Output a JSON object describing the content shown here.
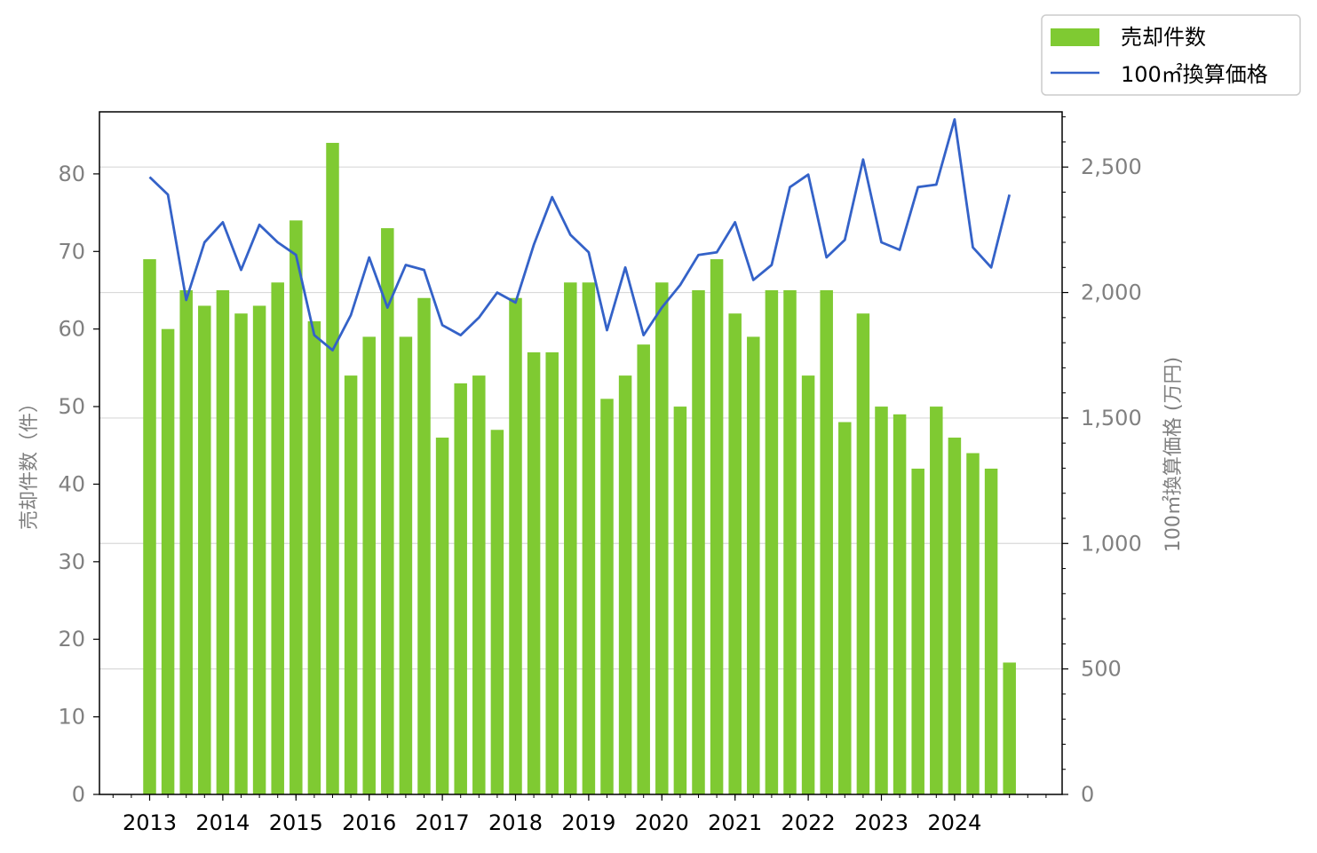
{
  "chart_data": {
    "type": "bar+line",
    "title": "",
    "x_labels": [
      "2013",
      "2014",
      "2015",
      "2016",
      "2017",
      "2018",
      "2019",
      "2020",
      "2021",
      "2022",
      "2023",
      "2024"
    ],
    "x_start_year": 2013,
    "periods_per_year": 4,
    "y_left_label": "売却件数（件）",
    "y_right_label": "100㎡換算価格 (万円)",
    "y_left_ticks": [
      "0",
      "10",
      "20",
      "30",
      "40",
      "50",
      "60",
      "70",
      "80"
    ],
    "y_right_ticks": [
      "0",
      "500",
      "1,000",
      "1,500",
      "2,000",
      "2,500"
    ],
    "y_left_lim": [
      0,
      88
    ],
    "y_right_lim": [
      0,
      2720
    ],
    "grid": true,
    "legend_position": "top-right",
    "legend": [
      "売却件数",
      "100㎡換算価格"
    ],
    "colors": {
      "bar": "#7fca32",
      "line": "#3462c8",
      "grid": "#d9d9d9",
      "tick_text": "#808080"
    },
    "series": [
      {
        "name": "売却件数",
        "type": "bar",
        "axis": "left",
        "values": [
          69,
          60,
          65,
          63,
          65,
          62,
          63,
          66,
          74,
          61,
          84,
          54,
          59,
          73,
          59,
          64,
          46,
          53,
          54,
          47,
          64,
          57,
          57,
          66,
          66,
          51,
          54,
          58,
          66,
          50,
          65,
          69,
          62,
          59,
          65,
          65,
          54,
          65,
          48,
          62,
          50,
          49,
          42,
          50,
          46,
          44,
          42,
          17
        ]
      },
      {
        "name": "100㎡換算価格",
        "type": "line",
        "axis": "right",
        "values": [
          2460,
          2390,
          1970,
          2200,
          2280,
          2090,
          2270,
          2200,
          2150,
          1830,
          1770,
          1910,
          2140,
          1940,
          2110,
          2090,
          1870,
          1830,
          1900,
          2000,
          1960,
          2190,
          2380,
          2230,
          2160,
          1850,
          2100,
          1830,
          1940,
          2030,
          2150,
          2160,
          2280,
          2050,
          2110,
          2420,
          2470,
          2140,
          2210,
          2530,
          2200,
          2170,
          2420,
          2430,
          2690,
          2180,
          2100,
          2390
        ]
      }
    ]
  }
}
